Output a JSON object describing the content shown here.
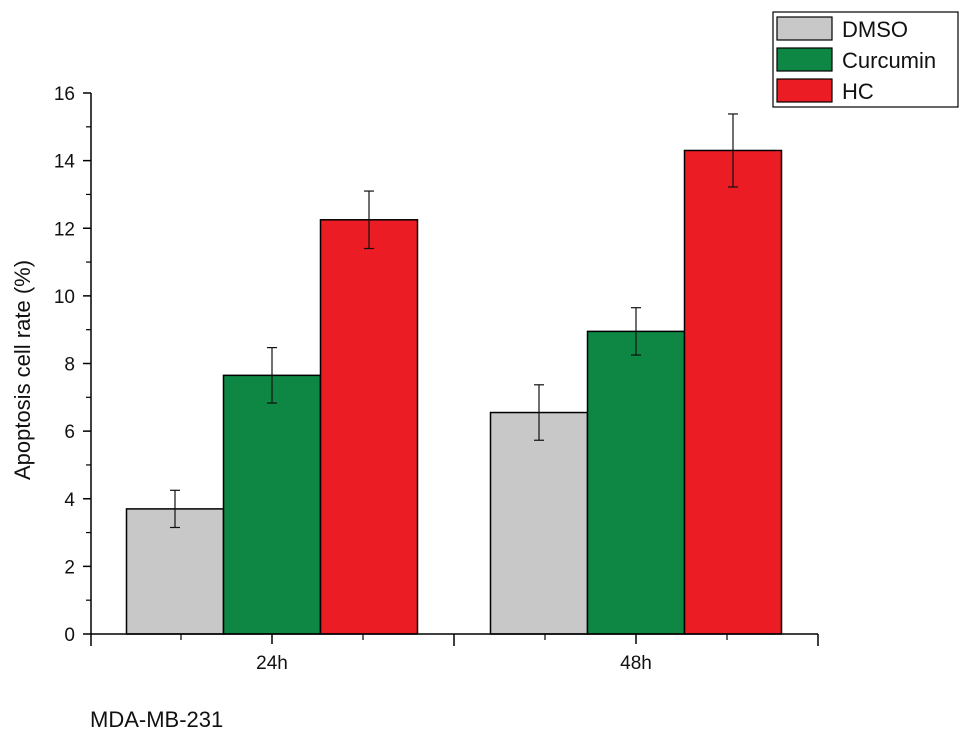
{
  "chart_data": {
    "type": "bar",
    "categories": [
      "24h",
      "48h"
    ],
    "series": [
      {
        "name": "DMSO",
        "color": "#c8c8c8",
        "values": [
          3.7,
          6.55
        ],
        "errors": [
          0.55,
          0.82
        ]
      },
      {
        "name": "Curcumin",
        "color": "#0e8644",
        "values": [
          7.65,
          8.95
        ],
        "errors": [
          0.82,
          0.7
        ]
      },
      {
        "name": "HC",
        "color": "#ec1c24",
        "values": [
          12.25,
          14.3
        ],
        "errors": [
          0.85,
          1.08
        ]
      }
    ],
    "ylabel": "Apoptosis cell rate (%)",
    "xlabel": "",
    "ylim": [
      0,
      16
    ],
    "yticks": [
      0,
      2,
      4,
      6,
      8,
      10,
      12,
      14,
      16
    ],
    "grid": false,
    "legend_position": "top-right"
  },
  "footer": {
    "label": "MDA-MB-231"
  }
}
